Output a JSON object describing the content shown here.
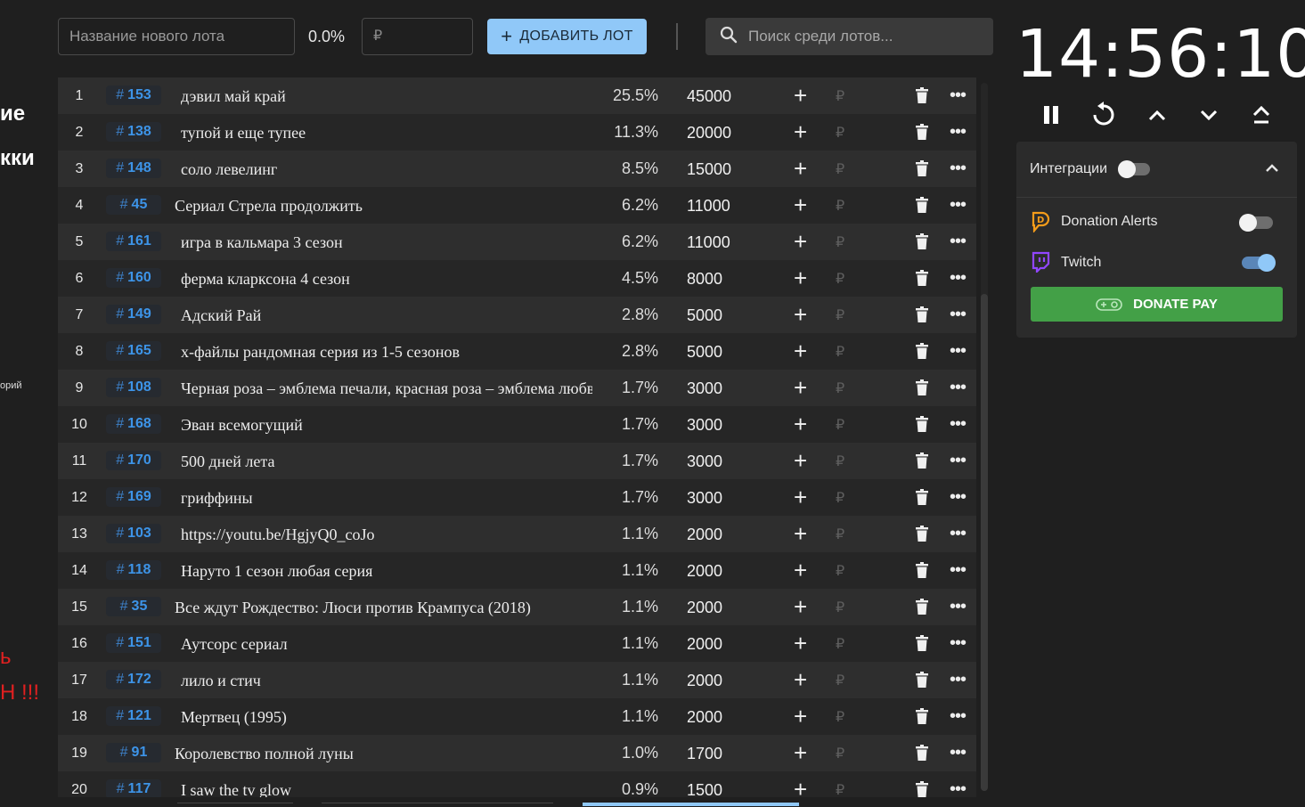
{
  "left_strip": {
    "fragment1": "ие",
    "fragment2": "кки",
    "fragment3": "орий",
    "fragment4": "ь",
    "fragment5": "Н !!!"
  },
  "toolbar": {
    "name_placeholder": "Название нового лота",
    "percent": "0.0%",
    "amount_placeholder": "₽",
    "add_label": "ДОБАВИТЬ ЛОТ",
    "search_placeholder": "Поиск среди лотов..."
  },
  "lots": [
    {
      "n": "1",
      "id": "153",
      "name": "дэвил май край",
      "pct": "25.5%",
      "amount": "45000"
    },
    {
      "n": "2",
      "id": "138",
      "name": "тупой и еще тупее",
      "pct": "11.3%",
      "amount": "20000"
    },
    {
      "n": "3",
      "id": "148",
      "name": "соло левелинг",
      "pct": "8.5%",
      "amount": "15000"
    },
    {
      "n": "4",
      "id": "45",
      "name": "Сериал Стрела продолжить",
      "pct": "6.2%",
      "amount": "11000"
    },
    {
      "n": "5",
      "id": "161",
      "name": "игра в кальмара 3 сезон",
      "pct": "6.2%",
      "amount": "11000"
    },
    {
      "n": "6",
      "id": "160",
      "name": "ферма кларксона 4 сезон",
      "pct": "4.5%",
      "amount": "8000"
    },
    {
      "n": "7",
      "id": "149",
      "name": "Адский Рай",
      "pct": "2.8%",
      "amount": "5000"
    },
    {
      "n": "8",
      "id": "165",
      "name": "х-файлы рандомная серия из 1-5 сезонов",
      "pct": "2.8%",
      "amount": "5000"
    },
    {
      "n": "9",
      "id": "108",
      "name": "Черная роза – эмблема печали, красная роза – эмблема любви",
      "pct": "1.7%",
      "amount": "3000"
    },
    {
      "n": "10",
      "id": "168",
      "name": "Эван всемогущий",
      "pct": "1.7%",
      "amount": "3000"
    },
    {
      "n": "11",
      "id": "170",
      "name": "500 дней лета",
      "pct": "1.7%",
      "amount": "3000"
    },
    {
      "n": "12",
      "id": "169",
      "name": "гриффины",
      "pct": "1.7%",
      "amount": "3000"
    },
    {
      "n": "13",
      "id": "103",
      "name": "https://youtu.be/HgjyQ0_coJo",
      "pct": "1.1%",
      "amount": "2000"
    },
    {
      "n": "14",
      "id": "118",
      "name": "Наруто 1 сезон любая серия",
      "pct": "1.1%",
      "amount": "2000"
    },
    {
      "n": "15",
      "id": "35",
      "name": "Все ждут Рождество: Люси против Крампуса (2018)",
      "pct": "1.1%",
      "amount": "2000"
    },
    {
      "n": "16",
      "id": "151",
      "name": "Аутсорс сериал",
      "pct": "1.1%",
      "amount": "2000"
    },
    {
      "n": "17",
      "id": "172",
      "name": "лило и стич",
      "pct": "1.1%",
      "amount": "2000"
    },
    {
      "n": "18",
      "id": "121",
      "name": "Мертвец (1995)",
      "pct": "1.1%",
      "amount": "2000"
    },
    {
      "n": "19",
      "id": "91",
      "name": "Королевство полной луны",
      "pct": "1.0%",
      "amount": "1700"
    },
    {
      "n": "20",
      "id": "117",
      "name": "I saw the tv glow",
      "pct": "0.9%",
      "amount": "1500"
    }
  ],
  "row_plus": "+",
  "row_currency": "₽",
  "row_more": "•••",
  "id_hash": "#",
  "timer": {
    "time": "14:56:10"
  },
  "integrations": {
    "title": "Интеграции",
    "enabled": false,
    "donation_alerts": {
      "label": "Donation Alerts",
      "enabled": false,
      "icon": "donation-alerts-icon"
    },
    "twitch": {
      "label": "Twitch",
      "enabled": true,
      "icon": "twitch-icon"
    },
    "donatepay_label": "DONATE PAY"
  },
  "colors": {
    "accent": "#90c8f8",
    "id_blue": "#3d94e8",
    "donatepay_green": "#43a047",
    "donation_alerts_orange": "#f59c1a",
    "twitch_purple": "#9146ff"
  }
}
